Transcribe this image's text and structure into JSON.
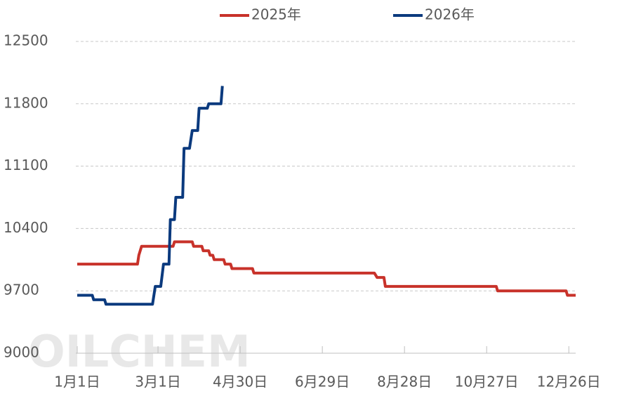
{
  "chart_data": {
    "type": "line",
    "watermark": "OILCHEM",
    "xlim": [
      0,
      364
    ],
    "xticks": [
      {
        "value": 0,
        "label": "1月1日"
      },
      {
        "value": 59,
        "label": "3月1日"
      },
      {
        "value": 119,
        "label": "4月30日"
      },
      {
        "value": 179,
        "label": "6月29日"
      },
      {
        "value": 239,
        "label": "8月28日"
      },
      {
        "value": 299,
        "label": "10月27日"
      },
      {
        "value": 359,
        "label": "12月26日"
      }
    ],
    "ylim": [
      9000,
      12500
    ],
    "yticks": [
      9000,
      9700,
      10400,
      11100,
      11800,
      12500
    ],
    "grid": true,
    "series": [
      {
        "name": "2025年",
        "color": "#c8322a",
        "x": [
          0,
          44,
          45,
          47,
          70,
          71,
          84,
          85,
          91,
          92,
          96,
          97,
          99,
          100,
          107,
          108,
          112,
          113,
          128,
          129,
          217,
          219,
          224,
          225,
          306,
          307,
          357,
          358,
          364
        ],
        "values": [
          10000,
          10000,
          10100,
          10200,
          10200,
          10250,
          10250,
          10200,
          10200,
          10150,
          10150,
          10100,
          10100,
          10050,
          10050,
          10000,
          10000,
          9950,
          9950,
          9900,
          9900,
          9850,
          9850,
          9750,
          9750,
          9700,
          9700,
          9650,
          9650
        ]
      },
      {
        "name": "2026年",
        "color": "#0b3a7e",
        "x": [
          0,
          11,
          12,
          20,
          21,
          55,
          57,
          61,
          63,
          67,
          68,
          71,
          72,
          77,
          78,
          82,
          84,
          88,
          89,
          95,
          96,
          105,
          106
        ],
        "values": [
          9650,
          9650,
          9600,
          9600,
          9550,
          9550,
          9750,
          9750,
          10000,
          10000,
          10500,
          10500,
          10750,
          10750,
          11300,
          11300,
          11500,
          11500,
          11750,
          11750,
          11800,
          11800,
          12000
        ]
      }
    ]
  }
}
